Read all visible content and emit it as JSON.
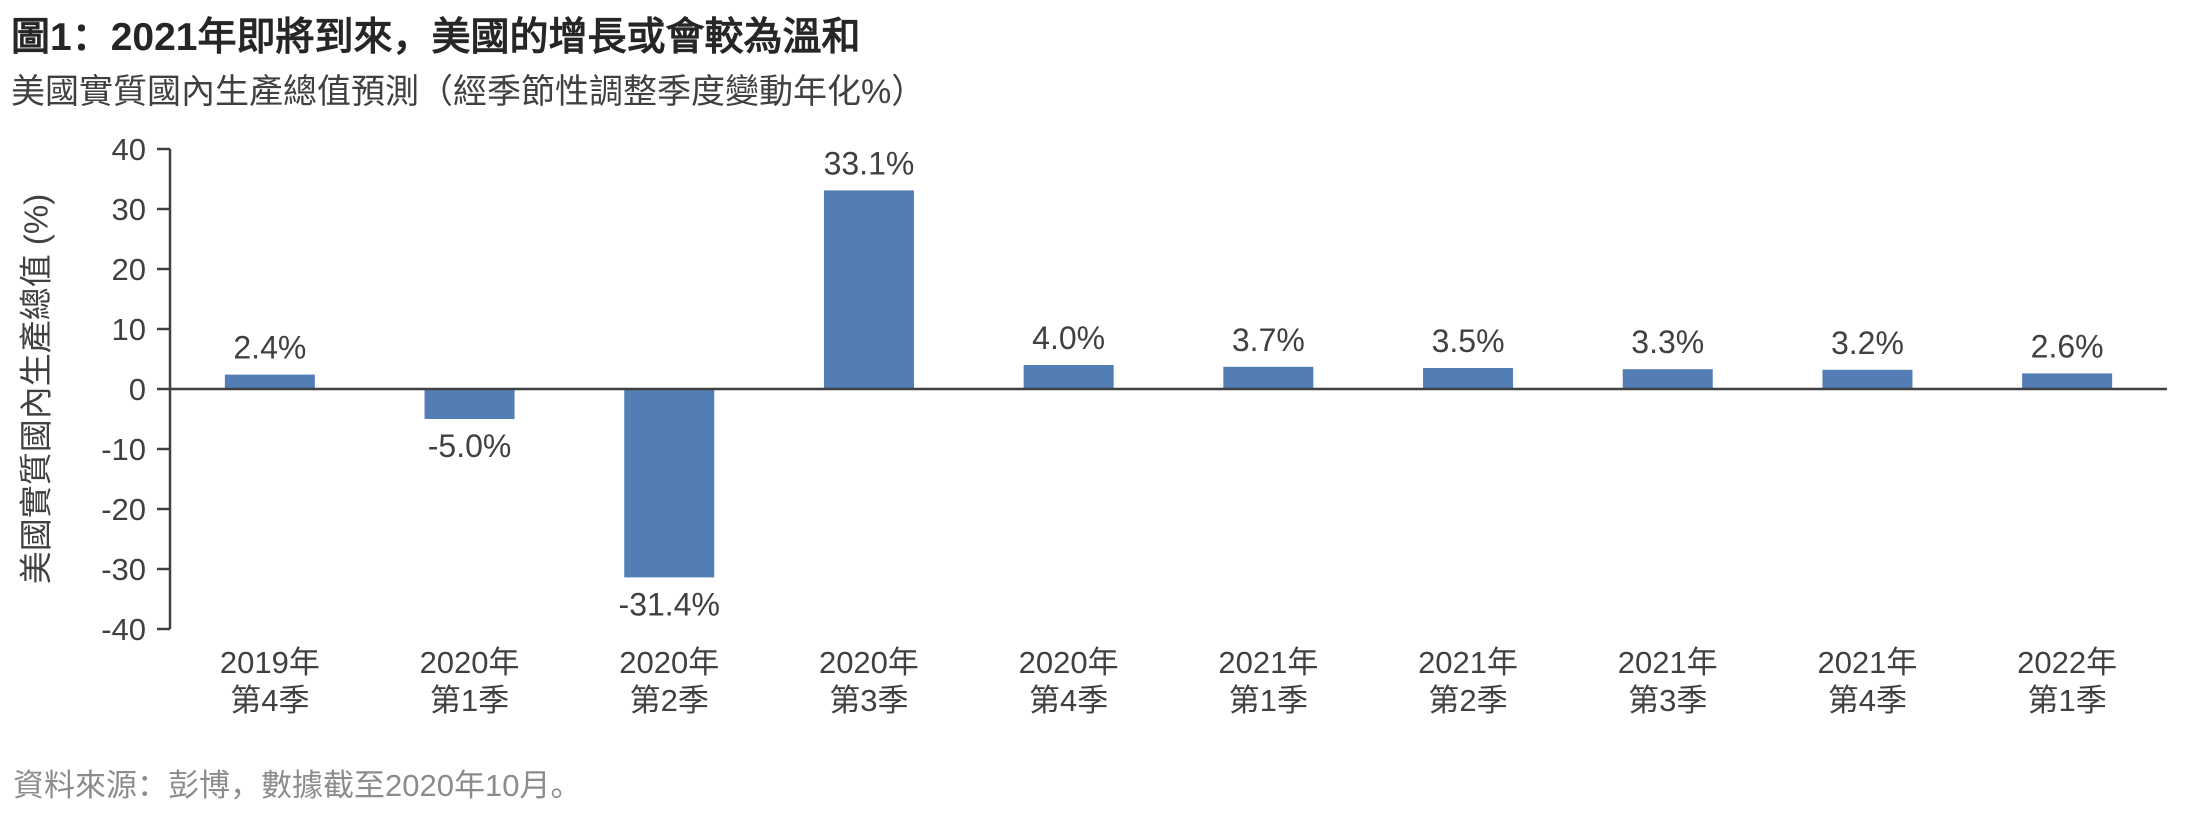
{
  "page": {
    "title": "圖1：2021年即將到來，美國的增長或會較為溫和",
    "subtitle": "美國實質國內生產總值預測（經季節性調整季度變動年化%）",
    "source": "資料來源：彭博，數據截至2020年10月。"
  },
  "chart_data": {
    "type": "bar",
    "title": "圖1：2021年即將到來，美國的增長或會較為溫和",
    "subtitle": "美國實質國內生產總值預測（經季節性調整季度變動年化%）",
    "ylabel": "美國實質國內生產總值 (%)",
    "xlabel": "",
    "categories": [
      "2019年第4季",
      "2020年第1季",
      "2020年第2季",
      "2020年第3季",
      "2020年第4季",
      "2021年第1季",
      "2021年第2季",
      "2021年第3季",
      "2021年第4季",
      "2022年第1季"
    ],
    "category_lines": [
      [
        "2019年",
        "第4季"
      ],
      [
        "2020年",
        "第1季"
      ],
      [
        "2020年",
        "第2季"
      ],
      [
        "2020年",
        "第3季"
      ],
      [
        "2020年",
        "第4季"
      ],
      [
        "2021年",
        "第1季"
      ],
      [
        "2021年",
        "第2季"
      ],
      [
        "2021年",
        "第3季"
      ],
      [
        "2021年",
        "第4季"
      ],
      [
        "2022年",
        "第1季"
      ]
    ],
    "values": [
      2.4,
      -5.0,
      -31.4,
      33.1,
      4.0,
      3.7,
      3.5,
      3.3,
      3.2,
      2.6
    ],
    "value_labels": [
      "2.4%",
      "-5.0%",
      "-31.4%",
      "33.1%",
      "4.0%",
      "3.7%",
      "3.5%",
      "3.3%",
      "3.2%",
      "2.6%"
    ],
    "ylim": [
      -40,
      40
    ],
    "ytick_step": 10,
    "yticks": [
      40,
      30,
      20,
      10,
      0,
      -10,
      -20,
      -30,
      -40
    ],
    "grid": false,
    "legend": false,
    "bar_color": "#527EB5",
    "axis_color": "#404040",
    "label_color": "#404040",
    "source": "資料來源：彭博，數據截至2020年10月。"
  }
}
